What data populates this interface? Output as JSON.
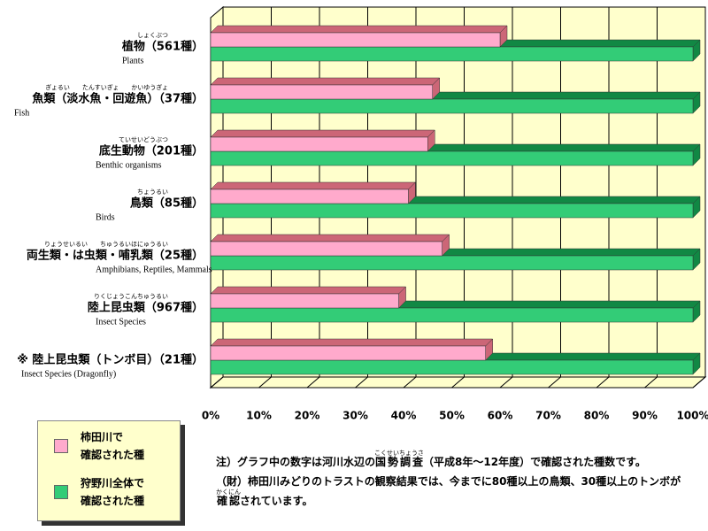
{
  "chart_data": {
    "type": "bar3d",
    "categories": [
      "植物（561種）",
      "魚類（淡水魚・回遊魚）（37種）",
      "底生動物（201種）",
      "鳥類（85種）",
      "両生類・は虫類・哺乳類（25種）",
      "陸上昆虫類（967種）",
      "※ 陸上昆虫類（トンボ目）（21種）"
    ],
    "category_ruby": [
      "しょくぶつ",
      "ぎょるい　　たんすいぎょ　　かいゆうぎょ",
      "ていせいどうぶつ",
      "ちょうるい",
      "りょうせいるい　　ちゅうるいほにゅうるい",
      "りくじょうこんちゅうるい",
      ""
    ],
    "category_english": [
      "Plants",
      "Fish",
      "Benthic organisms",
      "Birds",
      "Amphibians, Reptiles, Mammals",
      "Insect Species",
      "Insect Species (Dragonfly)"
    ],
    "series": [
      {
        "name": "柿田川で\n確認された種",
        "color": "#ffaacc",
        "values": [
          60,
          46,
          45,
          41,
          48,
          39,
          57
        ]
      },
      {
        "name": "狩野川全体で\n確認された種",
        "color": "#33cc77",
        "values": [
          100,
          100,
          100,
          100,
          100,
          100,
          100
        ]
      }
    ],
    "xlim": [
      0,
      100
    ],
    "xticks": [
      {
        "value": 0,
        "label": "0%"
      },
      {
        "value": 10,
        "label": "10%"
      },
      {
        "value": 20,
        "label": "20%"
      },
      {
        "value": 30,
        "label": "30%"
      },
      {
        "value": 40,
        "label": "40%"
      },
      {
        "value": 50,
        "label": "50%"
      },
      {
        "value": 60,
        "label": "60%"
      },
      {
        "value": 70,
        "label": "70%"
      },
      {
        "value": 80,
        "label": "80%"
      },
      {
        "value": 90,
        "label": "90%"
      },
      {
        "value": 100,
        "label": "100%"
      }
    ],
    "grid": true,
    "notes": [
      {
        "before": "注）グラフ中の数字は河川水辺の",
        "ruby_base": "国勢調査",
        "ruby": "こくせいちょうさ",
        "after": "（平成8年～12年度）で確認された種数です。"
      },
      {
        "before": "（財）柿田川みどりのトラストの観察結果では、今までに80種以上の鳥類、30種以上のトンボが",
        "ruby_base": "確認",
        "ruby": "かくにん",
        "after": "されています。"
      }
    ]
  }
}
